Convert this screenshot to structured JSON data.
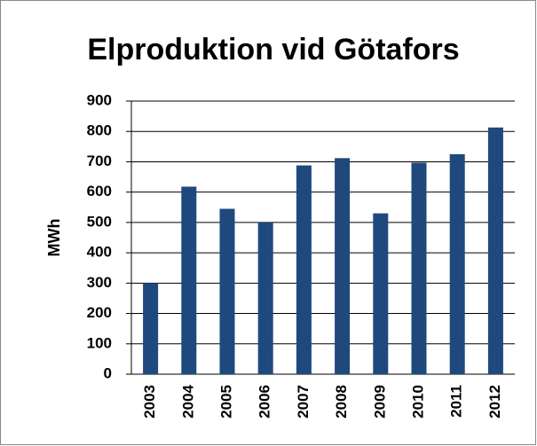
{
  "chart_data": {
    "type": "bar",
    "title": "Elproduktion vid Götafors",
    "y_label": "MWh",
    "categories": [
      "2003",
      "2004",
      "2005",
      "2006",
      "2007",
      "2008",
      "2009",
      "2010",
      "2011",
      "2012"
    ],
    "values": [
      300,
      618,
      545,
      500,
      688,
      712,
      530,
      697,
      725,
      813
    ],
    "color": "#1f497d",
    "ylim": [
      0,
      900
    ],
    "yticks": [
      0,
      100,
      200,
      300,
      400,
      500,
      600,
      700,
      800,
      900
    ],
    "grid": true
  }
}
